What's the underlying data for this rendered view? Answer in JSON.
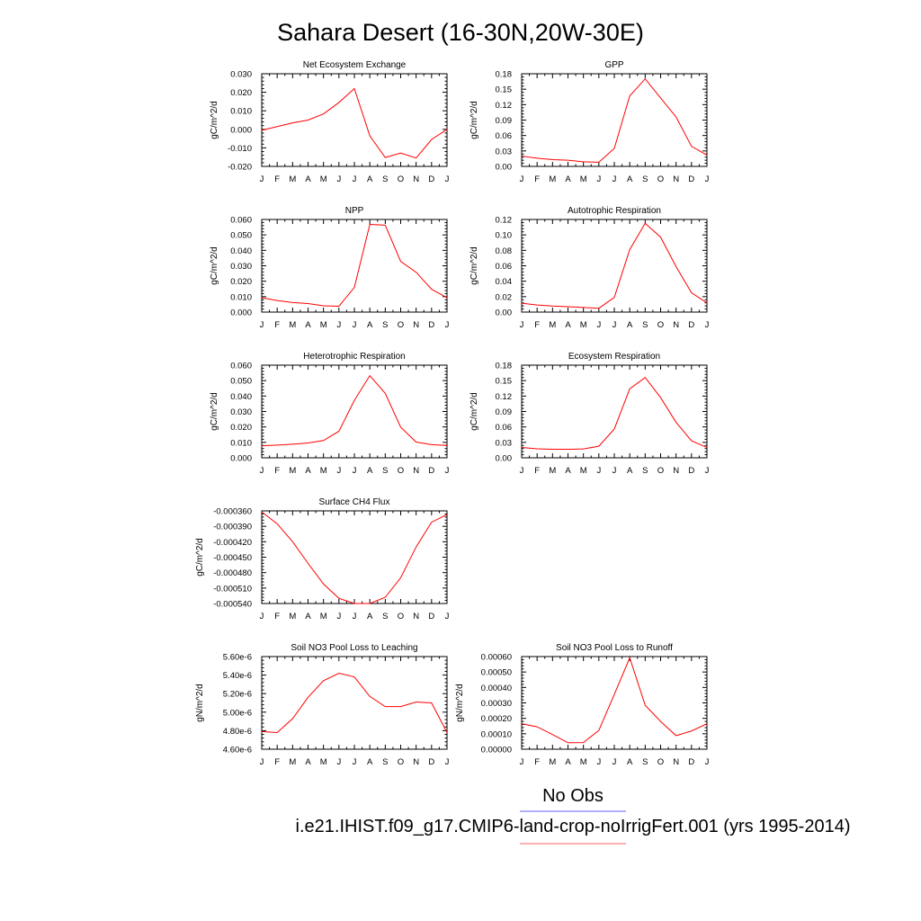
{
  "page_title": "Sahara Desert (16-30N,20W-30E)",
  "legend": {
    "items": [
      {
        "label": "No Obs",
        "color": "#7f7fff"
      },
      {
        "label": "i.e21.IHIST.f09_g17.CMIP6-land-crop-noIrrigFert.001 (yrs 1995-2014)",
        "color": "#ff7f7f"
      }
    ]
  },
  "colors": {
    "series": "#ff0000",
    "axis": "#000000"
  },
  "chart_data": [
    {
      "type": "line",
      "title": "Net Ecosystem Exchange",
      "ylabel": "gC/m^2/d",
      "categories": [
        "J",
        "F",
        "M",
        "A",
        "M",
        "J",
        "J",
        "A",
        "S",
        "O",
        "N",
        "D",
        "J"
      ],
      "ylim": [
        -0.02,
        0.03
      ],
      "yticks": [
        "-0.020",
        "-0.010",
        "0.000",
        "0.010",
        "0.020",
        "0.030"
      ],
      "series": [
        {
          "values": [
            -0.0005,
            0.0015,
            0.0035,
            0.005,
            0.0083,
            0.0145,
            0.022,
            -0.0035,
            -0.0152,
            -0.0128,
            -0.0155,
            -0.0055,
            0.0
          ]
        }
      ]
    },
    {
      "type": "line",
      "title": "GPP",
      "ylabel": "gC/m^2/d",
      "categories": [
        "J",
        "F",
        "M",
        "A",
        "M",
        "J",
        "J",
        "A",
        "S",
        "O",
        "N",
        "D",
        "J"
      ],
      "ylim": [
        0,
        0.18
      ],
      "yticks": [
        "0.00",
        "0.03",
        "0.06",
        "0.09",
        "0.12",
        "0.15",
        "0.18"
      ],
      "series": [
        {
          "values": [
            0.02,
            0.016,
            0.013,
            0.012,
            0.009,
            0.008,
            0.035,
            0.137,
            0.17,
            0.133,
            0.096,
            0.039,
            0.022
          ]
        }
      ]
    },
    {
      "type": "line",
      "title": "NPP",
      "ylabel": "gC/m^2/d",
      "categories": [
        "J",
        "F",
        "M",
        "A",
        "M",
        "J",
        "J",
        "A",
        "S",
        "O",
        "N",
        "D",
        "J"
      ],
      "ylim": [
        0,
        0.06
      ],
      "yticks": [
        "0.000",
        "0.010",
        "0.020",
        "0.030",
        "0.040",
        "0.050",
        "0.060"
      ],
      "series": [
        {
          "values": [
            0.0093,
            0.0075,
            0.0062,
            0.0055,
            0.0041,
            0.0038,
            0.016,
            0.0568,
            0.0563,
            0.0328,
            0.0258,
            0.0148,
            0.0093
          ]
        }
      ]
    },
    {
      "type": "line",
      "title": "Autotrophic Respiration",
      "ylabel": "gC/m^2/d",
      "categories": [
        "J",
        "F",
        "M",
        "A",
        "M",
        "J",
        "J",
        "A",
        "S",
        "O",
        "N",
        "D",
        "J"
      ],
      "ylim": [
        0,
        0.12
      ],
      "yticks": [
        "0.00",
        "0.02",
        "0.04",
        "0.06",
        "0.08",
        "0.10",
        "0.12"
      ],
      "series": [
        {
          "values": [
            0.0115,
            0.0092,
            0.0078,
            0.007,
            0.006,
            0.005,
            0.019,
            0.081,
            0.115,
            0.097,
            0.059,
            0.025,
            0.012
          ]
        }
      ]
    },
    {
      "type": "line",
      "title": "Heterotrophic Respiration",
      "ylabel": "gC/m^2/d",
      "categories": [
        "J",
        "F",
        "M",
        "A",
        "M",
        "J",
        "J",
        "A",
        "S",
        "O",
        "N",
        "D",
        "J"
      ],
      "ylim": [
        0,
        0.06
      ],
      "yticks": [
        "0.000",
        "0.010",
        "0.020",
        "0.030",
        "0.040",
        "0.050",
        "0.060"
      ],
      "series": [
        {
          "values": [
            0.0078,
            0.0082,
            0.0088,
            0.0096,
            0.0112,
            0.0172,
            0.0372,
            0.0532,
            0.0418,
            0.0198,
            0.0102,
            0.0085,
            0.008
          ]
        }
      ]
    },
    {
      "type": "line",
      "title": "Ecosystem Respiration",
      "ylabel": "gC/m^2/d",
      "categories": [
        "J",
        "F",
        "M",
        "A",
        "M",
        "J",
        "J",
        "A",
        "S",
        "O",
        "N",
        "D",
        "J"
      ],
      "ylim": [
        0,
        0.18
      ],
      "yticks": [
        "0.00",
        "0.03",
        "0.06",
        "0.09",
        "0.12",
        "0.15",
        "0.18"
      ],
      "series": [
        {
          "values": [
            0.02,
            0.0175,
            0.0165,
            0.0165,
            0.0172,
            0.0225,
            0.056,
            0.134,
            0.156,
            0.117,
            0.069,
            0.033,
            0.02
          ]
        }
      ]
    },
    {
      "type": "line",
      "title": "Surface CH4 Flux",
      "ylabel": "gC/m^2/d",
      "categories": [
        "J",
        "F",
        "M",
        "A",
        "M",
        "J",
        "J",
        "A",
        "S",
        "O",
        "N",
        "D",
        "J"
      ],
      "ylim": [
        -0.00054,
        -0.00036
      ],
      "yticks": [
        "-0.000540",
        "-0.000510",
        "-0.000480",
        "-0.000450",
        "-0.000420",
        "-0.000390",
        "-0.000360"
      ],
      "series": [
        {
          "values": [
            -0.000362,
            -0.000385,
            -0.00042,
            -0.000462,
            -0.000502,
            -0.00053,
            -0.00054,
            -0.00054,
            -0.000528,
            -0.00049,
            -0.00043,
            -0.000382,
            -0.000367
          ]
        }
      ]
    },
    {
      "type": "line",
      "title": "Soil NO3 Pool Loss to Leaching",
      "ylabel": "gN/m^2/d",
      "categories": [
        "J",
        "F",
        "M",
        "A",
        "M",
        "J",
        "J",
        "A",
        "S",
        "O",
        "N",
        "D",
        "J"
      ],
      "ylim": [
        4.6e-06,
        5.6e-06
      ],
      "yticks": [
        "4.60e-6",
        "4.80e-6",
        "5.00e-6",
        "5.20e-6",
        "5.40e-6",
        "5.60e-6"
      ],
      "series": [
        {
          "values": [
            4.79e-06,
            4.78e-06,
            4.93e-06,
            5.16e-06,
            5.34e-06,
            5.42e-06,
            5.38e-06,
            5.17e-06,
            5.06e-06,
            5.06e-06,
            5.11e-06,
            5.1e-06,
            4.78e-06
          ]
        }
      ]
    },
    {
      "type": "line",
      "title": "Soil NO3 Pool Loss to Runoff",
      "ylabel": "gN/m^2/d",
      "categories": [
        "J",
        "F",
        "M",
        "A",
        "M",
        "J",
        "J",
        "A",
        "S",
        "O",
        "N",
        "D",
        "J"
      ],
      "ylim": [
        0,
        0.0006
      ],
      "yticks": [
        "0.00000",
        "0.00010",
        "0.00020",
        "0.00030",
        "0.00040",
        "0.00050",
        "0.00060"
      ],
      "series": [
        {
          "values": [
            0.000165,
            0.000145,
            9.5e-05,
            4.2e-05,
            4.3e-05,
            0.000122,
            0.000355,
            0.000592,
            0.000285,
            0.00018,
            8.8e-05,
            0.000118,
            0.000165
          ]
        }
      ]
    }
  ]
}
